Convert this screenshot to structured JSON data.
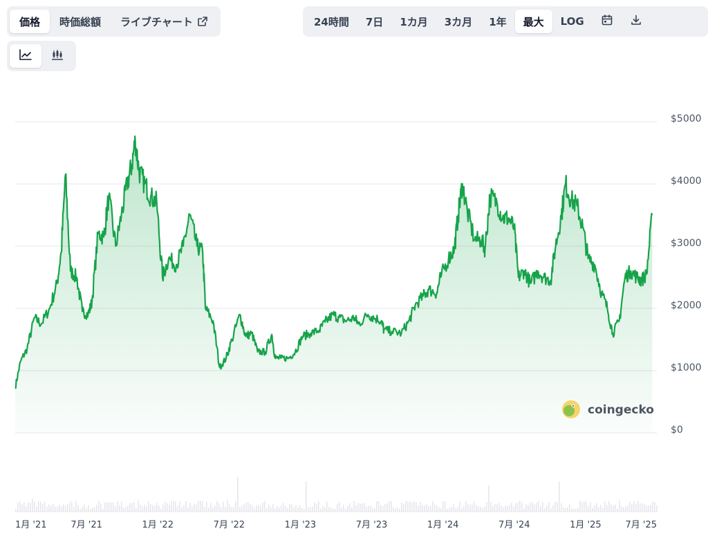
{
  "header": {
    "tabs": [
      {
        "label": "価格",
        "active": true
      },
      {
        "label": "時価総額",
        "active": false
      },
      {
        "label": "ライブチャート",
        "active": false,
        "icon": "external-link-icon"
      }
    ],
    "ranges": [
      {
        "label": "24時間",
        "active": false
      },
      {
        "label": "7日",
        "active": false
      },
      {
        "label": "1カ月",
        "active": false
      },
      {
        "label": "3カ月",
        "active": false
      },
      {
        "label": "1年",
        "active": false
      },
      {
        "label": "最大",
        "active": true
      },
      {
        "label": "LOG",
        "active": false
      }
    ],
    "range_icons": [
      "calendar-icon",
      "download-icon"
    ],
    "chart_types": [
      {
        "icon": "line-chart-icon",
        "active": true
      },
      {
        "icon": "candlestick-icon",
        "active": false
      }
    ]
  },
  "watermark": "coingecko",
  "colors": {
    "line": "#16a34a",
    "fill": "#16a34a",
    "grid": "#e5e7eb",
    "volume": "#e5e7eb"
  },
  "chart_data": {
    "type": "area",
    "title": "",
    "xlabel": "",
    "ylabel": "",
    "currency": "USD",
    "y_ticks": [
      "$5000",
      "$4000",
      "$3000",
      "$2000",
      "$1000",
      "$0"
    ],
    "ylim": [
      0,
      5000
    ],
    "x_ticks": [
      "1月 '21",
      "7月 '21",
      "1月 '22",
      "7月 '22",
      "1月 '23",
      "7月 '23",
      "1月 '24",
      "7月 '24",
      "1月 '25",
      "7月 '25"
    ],
    "x_range": [
      "2021-01-01",
      "2025-08-01"
    ],
    "grid": true,
    "series": [
      {
        "x": [
          "2021-01-01",
          "2021-01-15",
          "2021-02-01",
          "2021-02-20",
          "2021-03-10",
          "2021-04-01",
          "2021-04-20",
          "2021-05-01",
          "2021-05-12",
          "2021-05-25",
          "2021-06-10",
          "2021-06-25",
          "2021-07-10",
          "2021-07-20",
          "2021-08-05",
          "2021-08-20",
          "2021-09-02",
          "2021-09-20",
          "2021-10-05",
          "2021-10-20",
          "2021-11-01",
          "2021-11-10",
          "2021-11-20",
          "2021-12-05",
          "2021-12-20",
          "2022-01-05",
          "2022-01-20",
          "2022-02-05",
          "2022-02-25",
          "2022-03-15",
          "2022-04-01",
          "2022-04-20",
          "2022-05-05",
          "2022-05-12",
          "2022-06-01",
          "2022-06-18",
          "2022-07-05",
          "2022-07-20",
          "2022-08-10",
          "2022-08-25",
          "2022-09-10",
          "2022-09-25",
          "2022-10-15",
          "2022-11-01",
          "2022-11-10",
          "2022-11-25",
          "2022-12-15",
          "2023-01-01",
          "2023-01-20",
          "2023-02-10",
          "2023-03-05",
          "2023-03-20",
          "2023-04-10",
          "2023-04-25",
          "2023-05-15",
          "2023-06-05",
          "2023-06-15",
          "2023-07-10",
          "2023-07-25",
          "2023-08-15",
          "2023-08-20",
          "2023-09-10",
          "2023-10-05",
          "2023-10-25",
          "2023-11-10",
          "2023-12-01",
          "2023-12-15",
          "2024-01-05",
          "2024-01-15",
          "2024-02-05",
          "2024-02-20",
          "2024-03-01",
          "2024-03-12",
          "2024-03-25",
          "2024-04-13",
          "2024-05-01",
          "2024-05-10",
          "2024-05-23",
          "2024-06-10",
          "2024-06-25",
          "2024-07-10",
          "2024-07-25",
          "2024-08-05",
          "2024-08-20",
          "2024-09-06",
          "2024-09-25",
          "2024-10-10",
          "2024-10-28",
          "2024-11-10",
          "2024-11-25",
          "2024-12-06",
          "2024-12-20",
          "2025-01-05",
          "2025-01-20",
          "2025-02-03",
          "2025-02-20",
          "2025-03-10",
          "2025-03-25",
          "2025-04-08",
          "2025-04-25",
          "2025-05-10",
          "2025-05-25",
          "2025-06-10",
          "2025-06-22",
          "2025-07-05",
          "2025-07-20"
        ],
        "y": [
          730,
          1150,
          1350,
          1850,
          1750,
          2000,
          2400,
          2900,
          4150,
          2600,
          2500,
          1950,
          1900,
          2100,
          3200,
          3150,
          3800,
          3000,
          3500,
          4000,
          4300,
          4700,
          4200,
          4000,
          3800,
          3700,
          2500,
          2800,
          2700,
          3000,
          3500,
          3000,
          2900,
          2000,
          1800,
          1050,
          1200,
          1500,
          1900,
          1550,
          1600,
          1300,
          1300,
          1580,
          1200,
          1200,
          1200,
          1300,
          1550,
          1600,
          1650,
          1780,
          1900,
          1850,
          1800,
          1850,
          1750,
          1900,
          1850,
          1800,
          1650,
          1630,
          1600,
          1800,
          2050,
          2200,
          2300,
          2250,
          2500,
          2800,
          2950,
          3500,
          4000,
          3550,
          3100,
          3100,
          2950,
          3800,
          3700,
          3450,
          3450,
          3300,
          2500,
          2600,
          2400,
          2600,
          2500,
          2450,
          3000,
          3500,
          4000,
          3750,
          3650,
          3300,
          2800,
          2700,
          2250,
          2000,
          1600,
          1800,
          2500,
          2600,
          2500,
          2450,
          2550,
          3500
        ]
      }
    ],
    "volume_shown": true
  }
}
